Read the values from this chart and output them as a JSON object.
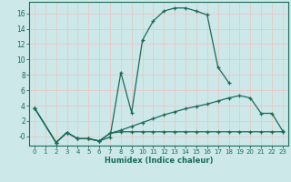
{
  "xlabel": "Humidex (Indice chaleur)",
  "background_color": "#cce8e8",
  "grid_color": "#e8c8c8",
  "line_color": "#1a6b5a",
  "xlim": [
    -0.5,
    23.5
  ],
  "ylim": [
    -1.2,
    17.5
  ],
  "xticks": [
    0,
    1,
    2,
    3,
    4,
    5,
    6,
    7,
    8,
    9,
    10,
    11,
    12,
    13,
    14,
    15,
    16,
    17,
    18,
    19,
    20,
    21,
    22,
    23
  ],
  "yticks": [
    0,
    2,
    4,
    6,
    8,
    10,
    12,
    14,
    16
  ],
  "ytick_labels": [
    "-0",
    "2",
    "4",
    "6",
    "8",
    "10",
    "12",
    "14",
    "16"
  ],
  "line1_x": [
    0,
    2,
    3,
    4,
    5,
    6,
    7,
    8,
    9,
    10,
    11,
    12,
    13,
    14,
    15,
    16,
    17,
    18
  ],
  "line1_y": [
    3.7,
    -0.8,
    0.5,
    -0.3,
    -0.3,
    -0.6,
    -0.1,
    8.3,
    3.1,
    12.5,
    15.0,
    16.3,
    16.7,
    16.7,
    16.3,
    15.8,
    9.0,
    7.0
  ],
  "line2_x": [
    0,
    2,
    3,
    4,
    5,
    6,
    7,
    8,
    9,
    10,
    11,
    12,
    13,
    14,
    15,
    16,
    17,
    18,
    19,
    20,
    21,
    22,
    23
  ],
  "line2_y": [
    3.7,
    -0.8,
    0.5,
    -0.3,
    -0.3,
    -0.6,
    0.4,
    0.8,
    1.3,
    1.8,
    2.3,
    2.8,
    3.2,
    3.6,
    3.9,
    4.2,
    4.6,
    5.0,
    5.3,
    5.0,
    3.0,
    3.0,
    0.7
  ],
  "line3_x": [
    0,
    2,
    3,
    4,
    5,
    6,
    7,
    8,
    9,
    10,
    11,
    12,
    13,
    14,
    15,
    16,
    17,
    18,
    19,
    20,
    21,
    22,
    23
  ],
  "line3_y": [
    3.7,
    -0.8,
    0.5,
    -0.3,
    -0.3,
    -0.6,
    0.4,
    0.6,
    0.6,
    0.6,
    0.6,
    0.6,
    0.6,
    0.6,
    0.6,
    0.6,
    0.6,
    0.6,
    0.6,
    0.6,
    0.6,
    0.6,
    0.6
  ]
}
